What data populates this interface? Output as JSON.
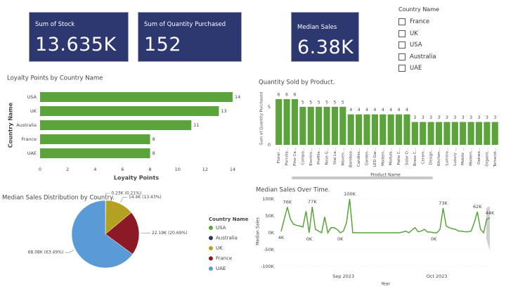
{
  "cards": [
    {
      "label": "Sum of Stock",
      "value": "13.635K"
    },
    {
      "label": "Sum of Quantity Purchased",
      "value": "152"
    },
    {
      "label": "Median Sales",
      "value": "6.38K"
    }
  ],
  "slicer": {
    "title": "Country Name",
    "options": [
      "France",
      "UK",
      "USA",
      "Australia",
      "UAE"
    ]
  },
  "chart_data": [
    {
      "type": "bar",
      "orientation": "horizontal",
      "title": "Loyalty Points by Country Name",
      "xlabel": "Loyalty Points",
      "ylabel": "Country Name",
      "categories": [
        "USA",
        "UK",
        "Australia",
        "France",
        "UAE"
      ],
      "values": [
        14,
        13,
        11,
        8,
        8
      ],
      "color": "#5ba33b",
      "xlim": [
        0,
        14
      ],
      "xticks": [
        0,
        2,
        4,
        6,
        8,
        10,
        12,
        14
      ],
      "data_labels": true
    },
    {
      "type": "bar",
      "orientation": "vertical",
      "title": "Quantity Sold by Product.",
      "xlabel": "Product Name",
      "ylabel": "Sum of Quantity Purchased",
      "categories": [
        "Floral ...",
        "Porcela...",
        "Pine Ca...",
        "Compo...",
        "Electric...",
        "Prefille...",
        "Rose G...",
        "Stai La...",
        "Woven ...",
        "Bamboo...",
        "Candles...",
        "Garden...",
        "LED Gar...",
        "Modern...",
        "Modula...",
        "Patio C...",
        "Solar O...",
        "Brass C...",
        "Ceram...",
        "Design...",
        "Kitchen...",
        "Lumino...",
        "Luxury ...",
        "Mobile ...",
        "Modern...",
        "Oakwo...",
        "Organic...",
        "Terracot..."
      ],
      "values": [
        6,
        6,
        6,
        5,
        5,
        5,
        5,
        5,
        5,
        4,
        4,
        4,
        4,
        4,
        4,
        4,
        4,
        3,
        3,
        3,
        3,
        3,
        3,
        3,
        3,
        3,
        3,
        3
      ],
      "color": "#5ba33b",
      "ylim": [
        0,
        6
      ],
      "yticks": [
        0,
        5
      ],
      "data_labels": true
    },
    {
      "type": "pie",
      "title": "Median Sales Distribution by Country.",
      "legend_title": "Country Name",
      "categories": [
        "USA",
        "Australia",
        "UK",
        "France",
        "UAE"
      ],
      "colors": [
        "#5ba33b",
        "#2b3a55",
        "#b5a121",
        "#8b1a24",
        "#5b9bd5"
      ],
      "values": [
        null,
        0.23,
        14.4,
        22.19,
        68.08
      ],
      "value_labels": [
        null,
        "0.23K (0.21%)",
        "14.4K (13.43%)",
        "22.19K (20.69%)",
        "68.08K (63.49%)"
      ]
    },
    {
      "type": "line",
      "title": "Median Sales Over Time.",
      "xlabel": "Year",
      "ylabel": "Median Sales",
      "color": "#5ba33b",
      "categories": [
        null,
        null,
        null,
        null,
        null,
        null,
        null,
        null,
        null,
        null,
        null,
        null,
        null,
        null,
        null,
        null,
        null,
        null,
        null,
        null,
        "Sep 2023",
        null,
        null,
        null,
        null,
        null,
        null,
        null,
        null,
        null,
        null,
        null,
        null,
        null,
        null,
        null,
        null,
        null,
        null,
        null,
        null,
        null,
        null,
        null,
        null,
        null,
        null,
        null,
        null,
        null,
        "Oct 2023",
        null,
        null,
        null,
        null,
        null,
        null,
        null,
        null,
        null,
        null,
        null,
        null,
        null,
        null,
        null,
        null,
        null
      ],
      "values": [
        4000,
        40000,
        76000,
        40000,
        25000,
        22000,
        20000,
        17000,
        64000,
        0,
        77000,
        10000,
        5000,
        0,
        47000,
        0,
        15000,
        15000,
        10000,
        0,
        5000,
        30000,
        100000,
        0,
        0,
        0,
        0,
        0,
        0,
        0,
        0,
        0,
        0,
        0,
        0,
        0,
        0,
        0,
        0,
        2000,
        5000,
        0,
        8000,
        15000,
        3000,
        5000,
        10000,
        2000,
        2000,
        0,
        0,
        10000,
        73000,
        20000,
        15000,
        12000,
        10000,
        5000,
        5000,
        3000,
        3000,
        5000,
        30000,
        62000,
        10000,
        0,
        40000,
        44000
      ],
      "value_labels": [
        "4K",
        null,
        "76K",
        null,
        null,
        null,
        null,
        null,
        null,
        "0K",
        "77K",
        null,
        null,
        null,
        null,
        null,
        null,
        null,
        null,
        "0K",
        null,
        null,
        "100K",
        null,
        null,
        null,
        null,
        null,
        null,
        null,
        null,
        null,
        null,
        null,
        null,
        null,
        null,
        null,
        null,
        null,
        null,
        null,
        null,
        null,
        null,
        null,
        null,
        null,
        null,
        "0K",
        null,
        null,
        "73K",
        null,
        null,
        null,
        null,
        null,
        null,
        null,
        null,
        null,
        null,
        "62K",
        null,
        null,
        null,
        "44K"
      ],
      "ylim": [
        -100000,
        100000
      ],
      "yticks": [
        {
          "value": -100000,
          "label": "-100K"
        },
        {
          "value": -50000,
          "label": "-50K"
        },
        {
          "value": 0,
          "label": "0K"
        },
        {
          "value": 50000,
          "label": "50K"
        },
        {
          "value": 100000,
          "label": "100K"
        }
      ],
      "grid": true
    }
  ]
}
